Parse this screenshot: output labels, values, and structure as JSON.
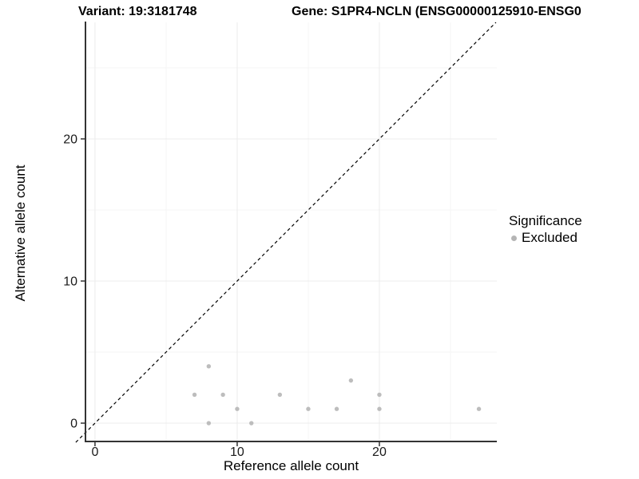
{
  "header": {
    "variant_title": "Variant: 19:3181748",
    "gene_title": "Gene: S1PR4-NCLN (ENSG00000125910-ENSG0"
  },
  "legend": {
    "title": "Significance",
    "items": [
      {
        "label": "Excluded",
        "color": "#b5b5b5"
      }
    ]
  },
  "chart_data": {
    "type": "scatter",
    "title": "Variant: 19:3181748 / Gene: S1PR4-NCLN (ENSG00000125910-ENSG0...)",
    "xlabel": "Reference allele count",
    "ylabel": "Alternative allele count",
    "xlim": [
      -0.67,
      28.26
    ],
    "ylim": [
      -1.29,
      28.2
    ],
    "x_ticks": [
      0,
      10,
      20
    ],
    "y_ticks": [
      0,
      10,
      20
    ],
    "x_minor_gridlines": [
      5,
      15,
      25
    ],
    "y_minor_gridlines": [
      5,
      15,
      25
    ],
    "grid": true,
    "legend_position": "right",
    "series": [
      {
        "name": "Excluded",
        "color": "#bdbdbd",
        "points": [
          [
            7,
            2
          ],
          [
            8,
            4
          ],
          [
            8,
            0
          ],
          [
            9,
            2
          ],
          [
            10,
            1
          ],
          [
            11,
            0
          ],
          [
            13,
            2
          ],
          [
            15,
            1
          ],
          [
            17,
            1
          ],
          [
            18,
            3
          ],
          [
            20,
            2
          ],
          [
            20,
            1
          ],
          [
            27,
            1
          ]
        ]
      }
    ],
    "identity_line": {
      "slope": 1,
      "intercept": 0,
      "style": "dashed",
      "color": "#000000",
      "extent": [
        -1.35,
        28.2
      ]
    },
    "colors": {
      "axis_line": "#333333",
      "tick_mark": "#333333",
      "tick_label": "#1a1a1a",
      "grid_major": "#ececec",
      "grid_minor": "#f5f5f5",
      "background": "#ffffff"
    }
  }
}
